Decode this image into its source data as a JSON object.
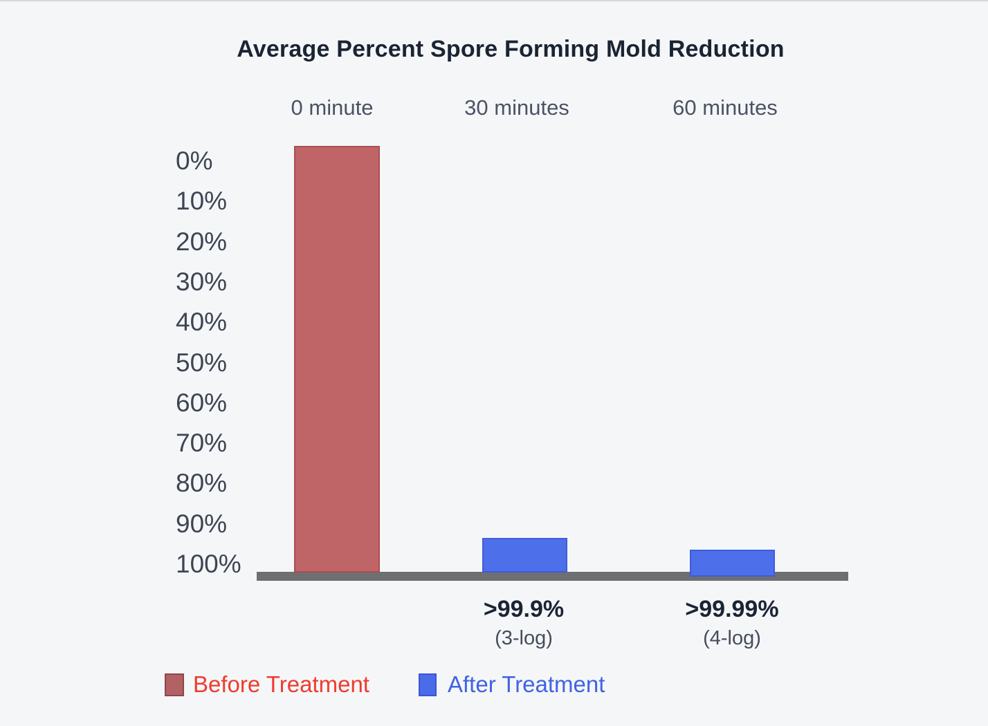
{
  "title": "Average Percent Spore Forming Mold Reduction",
  "chart_data": {
    "type": "bar",
    "title": "Average Percent Spore Forming Mold Reduction",
    "categories": [
      "0 minute",
      "30 minutes",
      "60 minutes"
    ],
    "y_axis": {
      "ticks": [
        "0%",
        "10%",
        "20%",
        "30%",
        "40%",
        "50%",
        "60%",
        "70%",
        "80%",
        "90%",
        "100%"
      ],
      "range": [
        0,
        100
      ],
      "inverted": true,
      "unit": "percent reduction",
      "grid": false
    },
    "series": [
      {
        "name": "Before Treatment",
        "color": "#bf6467",
        "data": [
          {
            "x": "0 minute",
            "reduction_percent": 0,
            "note": "full-height bar spanning 0% to 100% axis"
          }
        ]
      },
      {
        "name": "After Treatment",
        "color": "#4d6fe9",
        "data": [
          {
            "x": "30 minutes",
            "reduction_percent": 99.9,
            "displayed_value": ">99.9%",
            "log_reduction": "(3-log)"
          },
          {
            "x": "60 minutes",
            "reduction_percent": 99.99,
            "displayed_value": ">99.99%",
            "log_reduction": "(4-log)"
          }
        ]
      }
    ],
    "annotations": [
      {
        "value": ">99.9%",
        "sub": "(3-log)"
      },
      {
        "value": ">99.99%",
        "sub": "(4-log)"
      }
    ],
    "legend_position": "bottom-left"
  },
  "legend": {
    "items": [
      {
        "label": "Before Treatment",
        "swatch_color": "#b26165",
        "text_color": "#ef3b2d"
      },
      {
        "label": "After Treatment",
        "swatch_color": "#4a6ce8",
        "text_color": "#3f63e3"
      }
    ]
  },
  "colors": {
    "background": "#f5f6f8",
    "title_text": "#1b2433",
    "axis_label_text": "#3d4553",
    "column_header_text": "#4b5363",
    "baseline": "#6e6f71",
    "bar_before": "#bf6467",
    "bar_after": "#4d6fe9"
  }
}
